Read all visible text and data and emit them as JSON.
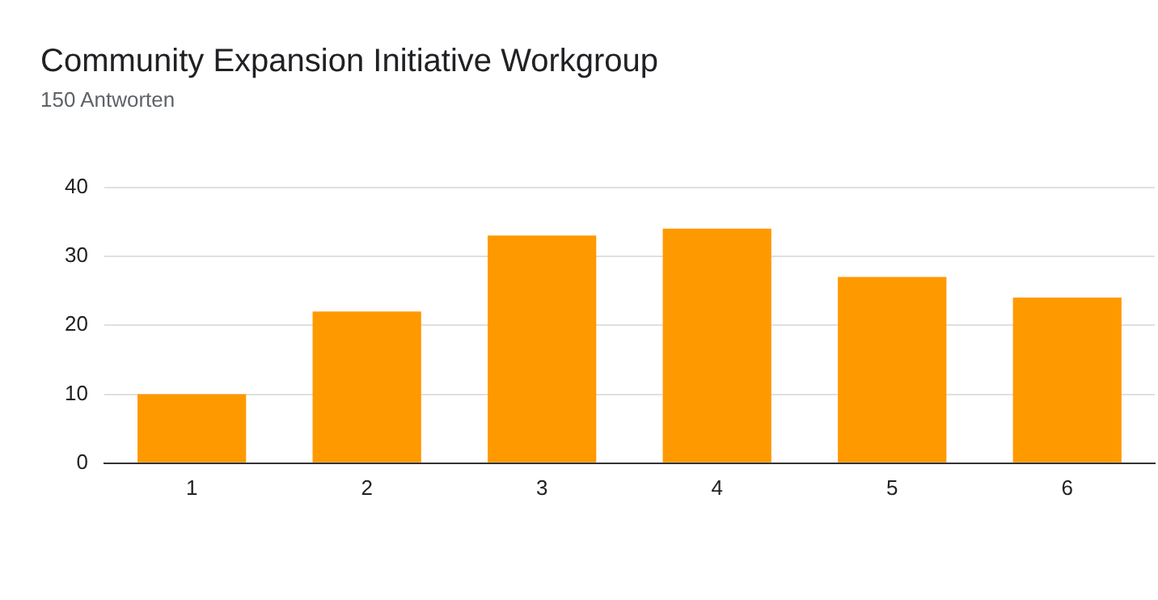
{
  "chart_data": {
    "type": "bar",
    "title": "Community Expansion Initiative Workgroup",
    "subtitle": "150 Antworten",
    "categories": [
      "1",
      "2",
      "3",
      "4",
      "5",
      "6"
    ],
    "values": [
      10,
      22,
      33,
      34,
      27,
      24
    ],
    "color": "#ff9900",
    "ylim": [
      0,
      40
    ],
    "yticks": [
      0,
      10,
      20,
      30,
      40
    ],
    "grid": "y",
    "legend": false
  }
}
